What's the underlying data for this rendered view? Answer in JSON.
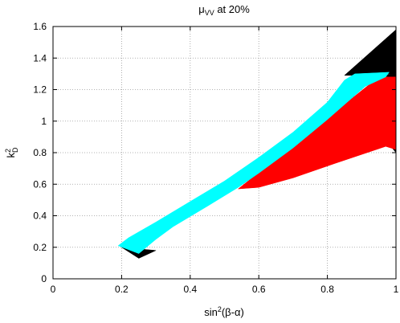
{
  "chart_data": {
    "type": "area",
    "title": {
      "main": "μ",
      "sub": "VV",
      "rest": " at 20%"
    },
    "xlabel": {
      "main": "sin",
      "sup": "2",
      "rest": "(β-α)"
    },
    "ylabel": {
      "main": "k",
      "sup": "2",
      "sub": "D"
    },
    "xlim": [
      0,
      1
    ],
    "ylim": [
      0,
      1.6
    ],
    "grid": true,
    "legend": "none",
    "xticks": [
      {
        "value": 0,
        "label": "0"
      },
      {
        "value": 0.2,
        "label": "0.2"
      },
      {
        "value": 0.4,
        "label": "0.4"
      },
      {
        "value": 0.6,
        "label": "0.6"
      },
      {
        "value": 0.8,
        "label": "0.8"
      },
      {
        "value": 1,
        "label": "1"
      }
    ],
    "yticks": [
      {
        "value": 0,
        "label": "0"
      },
      {
        "value": 0.2,
        "label": "0.2"
      },
      {
        "value": 0.4,
        "label": "0.4"
      },
      {
        "value": 0.6,
        "label": "0.6"
      },
      {
        "value": 0.8,
        "label": "0.8"
      },
      {
        "value": 1,
        "label": "1"
      },
      {
        "value": 1.2,
        "label": "1.2"
      },
      {
        "value": 1.4,
        "label": "1.4"
      },
      {
        "value": 1.6,
        "label": "1.6"
      }
    ],
    "series": [
      {
        "color": "#000000",
        "polygons": [
          [
            [
              0.85,
              1.29
            ],
            [
              1.0,
              1.58
            ],
            [
              1.0,
              1.3
            ],
            [
              0.92,
              1.29
            ]
          ],
          [
            [
              0.92,
              1.28
            ],
            [
              1.0,
              1.3
            ],
            [
              1.0,
              0.8
            ],
            [
              0.985,
              0.84
            ],
            [
              0.94,
              1.12
            ]
          ],
          [
            [
              0.2,
              0.2
            ],
            [
              0.25,
              0.13
            ],
            [
              0.3,
              0.18
            ]
          ]
        ]
      },
      {
        "color": "#ff0000",
        "polygons": [
          [
            [
              0.54,
              0.57
            ],
            [
              0.95,
              1.28
            ],
            [
              1.0,
              1.28
            ],
            [
              1.0,
              0.82
            ],
            [
              0.97,
              0.84
            ],
            [
              0.82,
              0.73
            ],
            [
              0.7,
              0.64
            ],
            [
              0.6,
              0.58
            ]
          ]
        ]
      },
      {
        "color": "#00ffff",
        "polygons": [
          [
            [
              0.19,
              0.21
            ],
            [
              0.22,
              0.26
            ],
            [
              0.3,
              0.36
            ],
            [
              0.4,
              0.49
            ],
            [
              0.5,
              0.62
            ],
            [
              0.6,
              0.77
            ],
            [
              0.7,
              0.93
            ],
            [
              0.8,
              1.12
            ],
            [
              0.85,
              1.26
            ],
            [
              0.88,
              1.3
            ],
            [
              0.98,
              1.31
            ],
            [
              0.97,
              1.28
            ],
            [
              0.91,
              1.22
            ],
            [
              0.8,
              1.01
            ],
            [
              0.7,
              0.83
            ],
            [
              0.6,
              0.67
            ],
            [
              0.54,
              0.58
            ],
            [
              0.45,
              0.46
            ],
            [
              0.35,
              0.33
            ],
            [
              0.3,
              0.25
            ],
            [
              0.25,
              0.16
            ]
          ]
        ]
      }
    ]
  }
}
